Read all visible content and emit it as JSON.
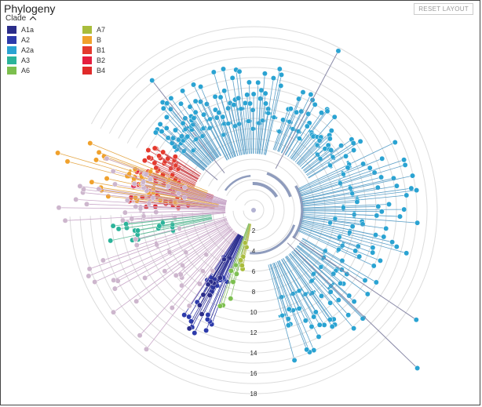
{
  "header": {
    "title": "Phylogeny",
    "reset_label": "RESET LAYOUT"
  },
  "legend": {
    "toggle_label": "Clade",
    "items": [
      {
        "label": "A1a",
        "color": "#2b2d8a"
      },
      {
        "label": "A2",
        "color": "#2d3bab"
      },
      {
        "label": "A2a",
        "color": "#2aa3d2"
      },
      {
        "label": "A3",
        "color": "#2bb39a"
      },
      {
        "label": "A6",
        "color": "#7cbf4e"
      },
      {
        "label": "A7",
        "color": "#a9bd3c"
      },
      {
        "label": "B",
        "color": "#f0a12c"
      },
      {
        "label": "B1",
        "color": "#e43a2e"
      },
      {
        "label": "B2",
        "color": "#e51e3e"
      },
      {
        "label": "B4",
        "color": "#e02a2a"
      }
    ]
  },
  "rings": {
    "labels": [
      "2",
      "4",
      "6",
      "8",
      "10",
      "12",
      "14",
      "16",
      "18"
    ]
  },
  "colors": {
    "ring": "#dcdcdc",
    "branch_default": "#cdb6cd",
    "trunk": "#8f9cbd"
  }
}
